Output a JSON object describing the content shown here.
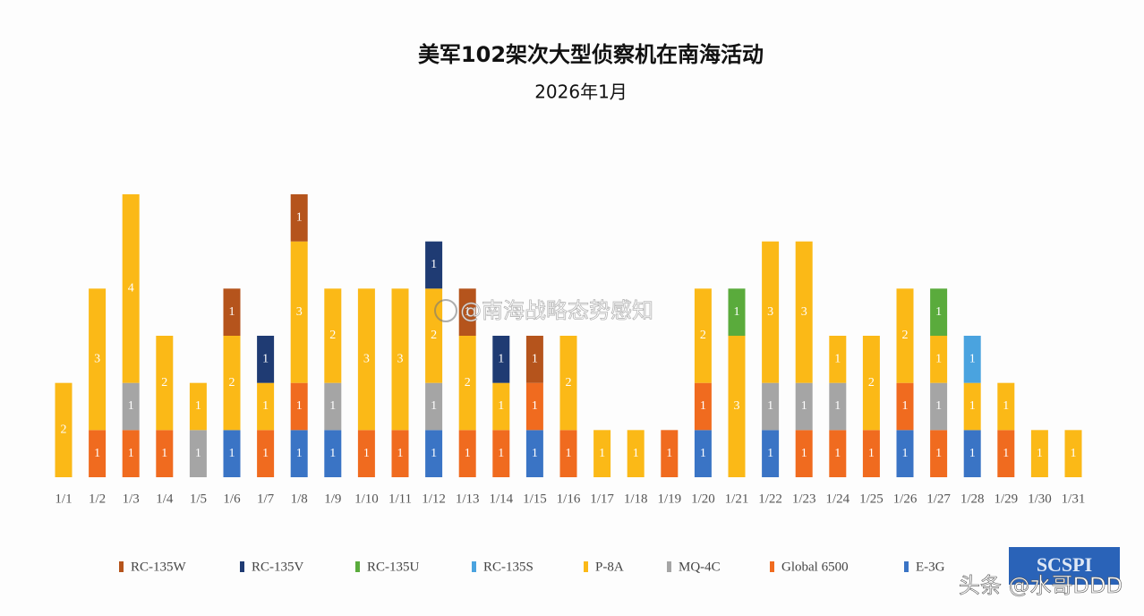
{
  "chart_data": {
    "type": "stacked_bar",
    "title": "美军102架次大型侦察机在南海活动",
    "subtitle": "2026年1月",
    "categories": [
      "1/1",
      "1/2",
      "1/3",
      "1/4",
      "1/5",
      "1/6",
      "1/7",
      "1/8",
      "1/9",
      "1/10",
      "1/11",
      "1/12",
      "1/13",
      "1/14",
      "1/15",
      "1/16",
      "1/17",
      "1/18",
      "1/19",
      "1/20",
      "1/21",
      "1/22",
      "1/23",
      "1/24",
      "1/25",
      "1/26",
      "1/27",
      "1/28",
      "1/29",
      "1/30",
      "1/31"
    ],
    "series": [
      {
        "name": "E-3G",
        "color": "#3a74c5",
        "values": [
          null,
          null,
          null,
          null,
          null,
          1,
          null,
          1,
          1,
          null,
          null,
          1,
          null,
          null,
          1,
          null,
          null,
          null,
          null,
          1,
          null,
          1,
          null,
          null,
          null,
          1,
          null,
          1,
          null,
          null,
          null
        ]
      },
      {
        "name": "Global 6500",
        "color": "#f06b1f",
        "values": [
          null,
          1,
          1,
          1,
          null,
          null,
          1,
          1,
          null,
          1,
          1,
          null,
          1,
          1,
          1,
          1,
          null,
          null,
          1,
          1,
          null,
          null,
          1,
          1,
          1,
          1,
          1,
          null,
          1,
          null,
          null
        ]
      },
      {
        "name": "MQ-4C",
        "color": "#a5a5a5",
        "values": [
          null,
          null,
          1,
          null,
          1,
          null,
          null,
          null,
          1,
          null,
          null,
          1,
          null,
          null,
          null,
          null,
          null,
          null,
          null,
          null,
          null,
          1,
          1,
          1,
          null,
          null,
          1,
          null,
          null,
          null,
          null
        ]
      },
      {
        "name": "P-8A",
        "color": "#fbb917",
        "values": [
          2,
          3,
          4,
          2,
          1,
          2,
          1,
          3,
          2,
          3,
          3,
          2,
          2,
          1,
          null,
          2,
          1,
          1,
          null,
          2,
          3,
          3,
          3,
          1,
          2,
          2,
          1,
          1,
          1,
          1,
          1
        ]
      },
      {
        "name": "RC-135S",
        "color": "#4aa3df",
        "values": [
          null,
          null,
          null,
          null,
          null,
          null,
          null,
          null,
          null,
          null,
          null,
          null,
          null,
          null,
          null,
          null,
          null,
          null,
          null,
          null,
          null,
          null,
          null,
          null,
          null,
          null,
          null,
          1,
          null,
          null,
          null
        ]
      },
      {
        "name": "RC-135U",
        "color": "#5aab3c",
        "values": [
          null,
          null,
          null,
          null,
          null,
          null,
          null,
          null,
          null,
          null,
          null,
          null,
          null,
          null,
          null,
          null,
          null,
          null,
          null,
          null,
          1,
          null,
          null,
          null,
          null,
          null,
          1,
          null,
          null,
          null,
          null
        ]
      },
      {
        "name": "RC-135V",
        "color": "#1f3b73",
        "values": [
          null,
          null,
          null,
          null,
          null,
          null,
          1,
          null,
          null,
          null,
          null,
          1,
          null,
          1,
          null,
          null,
          null,
          null,
          null,
          null,
          null,
          null,
          null,
          null,
          null,
          null,
          null,
          null,
          null,
          null,
          null
        ]
      },
      {
        "name": "RC-135W",
        "color": "#b5541c",
        "values": [
          null,
          null,
          null,
          null,
          null,
          1,
          null,
          1,
          null,
          null,
          null,
          null,
          1,
          null,
          1,
          null,
          null,
          null,
          null,
          null,
          null,
          null,
          null,
          null,
          null,
          null,
          null,
          null,
          null,
          null,
          null
        ]
      }
    ],
    "annotations": [
      "@南海战略态势感知",
      "头条 @水哥DDD",
      "SCSPI"
    ]
  }
}
